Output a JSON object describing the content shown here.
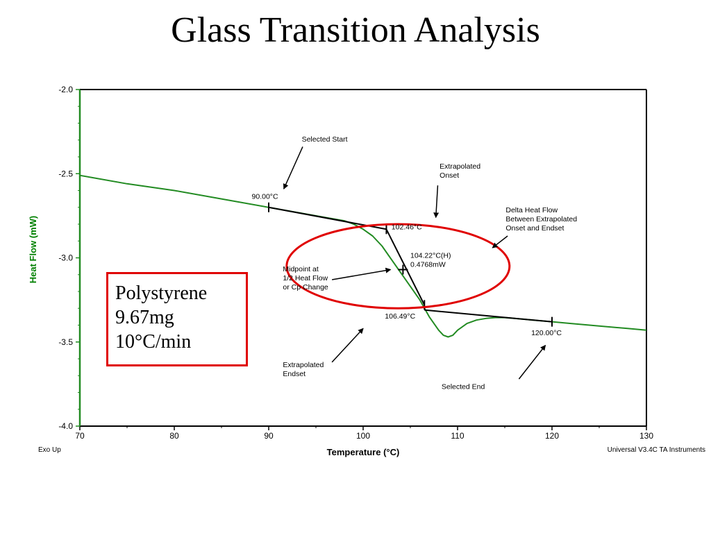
{
  "slide_title": "Glass Transition Analysis",
  "sample_box": {
    "lines": [
      "Polystyrene",
      "9.67mg",
      "10°C/min"
    ],
    "border_color": "#e00000"
  },
  "footer": {
    "left": "Exo Up",
    "right": "Universal V3.4C TA Instruments"
  },
  "chart_data": {
    "type": "line",
    "title": "",
    "xlabel": "Temperature (°C)",
    "ylabel": "Heat Flow (mW)",
    "xlim": [
      70,
      130
    ],
    "ylim": [
      -4.0,
      -2.0
    ],
    "x_ticks": [
      70,
      80,
      90,
      100,
      110,
      120,
      130
    ],
    "y_ticks": [
      -2.0,
      -2.5,
      -3.0,
      -3.5,
      -4.0
    ],
    "x_tick_labels": [
      "70",
      "80",
      "90",
      "100",
      "110",
      "120",
      "130"
    ],
    "y_tick_labels": [
      "-2.0",
      "-2.5",
      "-3.0",
      "-3.5",
      "-4.0"
    ],
    "grid": false,
    "line_color": "#228b22",
    "ylabel_color": "#008000",
    "series": [
      {
        "x": [
          70,
          75,
          80,
          85,
          90,
          94,
          96,
          98,
          99,
          100,
          101,
          102,
          103,
          104,
          105,
          106,
          107,
          108,
          108.5,
          109,
          109.5,
          110,
          111,
          112,
          113,
          114,
          115,
          116,
          118,
          120,
          122,
          125,
          128,
          130
        ],
        "values": [
          -2.51,
          -2.56,
          -2.6,
          -2.65,
          -2.7,
          -2.74,
          -2.76,
          -2.78,
          -2.8,
          -2.83,
          -2.87,
          -2.93,
          -3.01,
          -3.09,
          -3.17,
          -3.25,
          -3.35,
          -3.43,
          -3.46,
          -3.47,
          -3.46,
          -3.43,
          -3.39,
          -3.37,
          -3.36,
          -3.355,
          -3.355,
          -3.36,
          -3.37,
          -3.38,
          -3.39,
          -3.405,
          -3.42,
          -3.43
        ]
      }
    ],
    "construction_lines": [
      {
        "x": [
          90,
          102.46
        ],
        "y": [
          -2.7,
          -2.83
        ]
      },
      {
        "x": [
          102.46,
          106.49
        ],
        "y": [
          -2.83,
          -3.28
        ]
      },
      {
        "x": [
          106.49,
          120.0
        ],
        "y": [
          -3.31,
          -3.38
        ]
      }
    ],
    "markers": [
      {
        "x": 90.0,
        "y": -2.7
      },
      {
        "x": 102.46,
        "y": -2.83
      },
      {
        "x": 104.22,
        "y": -3.07
      },
      {
        "x": 106.49,
        "y": -3.28
      },
      {
        "x": 120.0,
        "y": -3.38
      }
    ],
    "annotations": [
      {
        "lines": [
          "Selected Start"
        ],
        "tx": 93.5,
        "ty": -2.31,
        "arrow": [
          [
            93.6,
            -2.34
          ],
          [
            91.6,
            -2.59
          ]
        ]
      },
      {
        "lines": [
          "90.00°C"
        ],
        "tx": 88.2,
        "ty": -2.65
      },
      {
        "lines": [
          "Extrapolated",
          "Onset"
        ],
        "tx": 108.1,
        "ty": -2.47,
        "arrow": [
          [
            107.9,
            -2.57
          ],
          [
            107.7,
            -2.76
          ]
        ]
      },
      {
        "lines": [
          "Delta Heat Flow",
          "Between Extrapolated",
          "Onset and Endset"
        ],
        "tx": 115.1,
        "ty": -2.73,
        "arrow": [
          [
            115.3,
            -2.87
          ],
          [
            113.7,
            -2.94
          ]
        ]
      },
      {
        "lines": [
          "102.46°C"
        ],
        "tx": 103.0,
        "ty": -2.83
      },
      {
        "lines": [
          "104.22°C(H)",
          "0.4768mW"
        ],
        "tx": 105.0,
        "ty": -3.0
      },
      {
        "lines": [
          "Midpoint at",
          "1/2 Heat Flow",
          "or Cp Change"
        ],
        "tx": 91.5,
        "ty": -3.08,
        "arrow": [
          [
            96.7,
            -3.13
          ],
          [
            102.9,
            -3.07
          ]
        ]
      },
      {
        "lines": [
          "106.49°C"
        ],
        "tx": 102.3,
        "ty": -3.36
      },
      {
        "lines": [
          "120.00°C"
        ],
        "tx": 117.8,
        "ty": -3.46
      },
      {
        "lines": [
          "Extrapolated",
          "Endset"
        ],
        "tx": 91.5,
        "ty": -3.65,
        "arrow": [
          [
            96.7,
            -3.62
          ],
          [
            100.0,
            -3.42
          ]
        ]
      },
      {
        "lines": [
          "Selected End"
        ],
        "tx": 108.3,
        "ty": -3.78,
        "arrow": [
          [
            116.5,
            -3.72
          ],
          [
            119.3,
            -3.52
          ]
        ]
      }
    ],
    "ellipse": {
      "cx": 103.7,
      "cy": -3.05,
      "rx": 11.8,
      "ry": 0.25,
      "color": "#e00000"
    }
  }
}
